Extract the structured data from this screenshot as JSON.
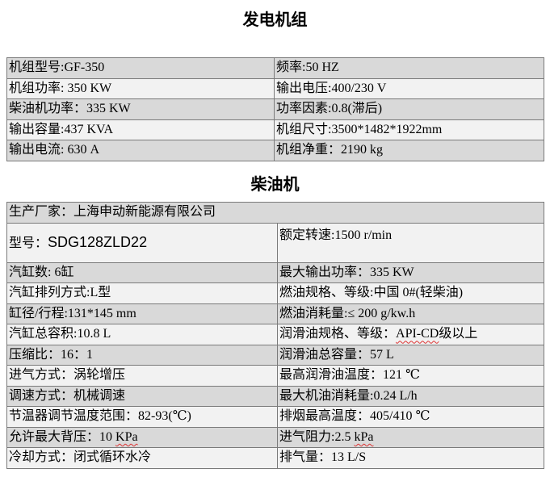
{
  "genset": {
    "title": "发电机组",
    "rows": [
      [
        "机组型号:GF-350",
        "频率:50 HZ"
      ],
      [
        "机组功率: 350 KW",
        "输出电压:400/230 V"
      ],
      [
        "柴油机功率：335 KW",
        "功率因素:0.8(滞后)"
      ],
      [
        "输出容量:437 KVA",
        "机组尺寸:3500*1482*1922mm"
      ],
      [
        "输出电流: 630 A",
        "机组净重：2190 kg"
      ]
    ]
  },
  "engine": {
    "title": "柴油机",
    "manufacturer": "生产厂家：上海申动新能源有限公司",
    "model_label": "型号：",
    "model_value": "SDG128ZLD22",
    "rated_speed": "额定转速:1500 r/min",
    "rows": [
      [
        "汽缸数: 6缸",
        "最大输出功率：335 KW"
      ],
      [
        "汽缸排列方式:L型",
        "燃油规格、等级:中国 0#(轻柴油)"
      ],
      [
        "缸径/行程:131*145 mm",
        "燃油消耗量:≤ 200 g/kw.h"
      ],
      [
        "汽缸总容积:10.8 L",
        "润滑油规格、等级：|API-CD|级以上"
      ],
      [
        "压缩比：16：1",
        "润滑油总容量：57 L"
      ],
      [
        "进气方式：涡轮增压",
        "最高润滑油温度：121 ℃"
      ],
      [
        "调速方式：机械调速",
        "最大机油消耗量:0.24 L/h"
      ],
      [
        "节温器调节温度范围：82-93(℃)",
        "排烟最高温度：405/410 ℃"
      ],
      [
        "允许最大背压：10 |KPa|",
        "进气阻力:2.5 |kPa|"
      ],
      [
        "冷却方式：闭式循环水冷",
        "排气量：13 L/S"
      ]
    ]
  }
}
